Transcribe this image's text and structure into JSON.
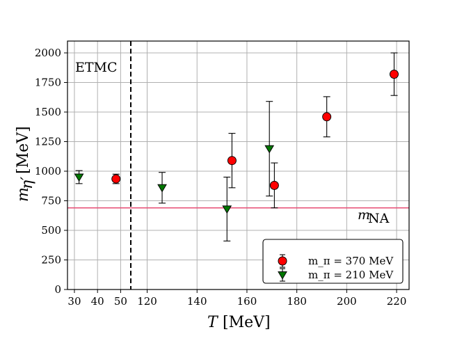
{
  "chart_data": {
    "type": "scatter",
    "title": "",
    "xlabel": "T [MeV]",
    "ylabel": "m_η′ [MeV]",
    "ylim": [
      0,
      2100
    ],
    "yticks": [
      0,
      250,
      500,
      750,
      1000,
      1250,
      1500,
      1750,
      2000
    ],
    "x_axis": "broken: first segment 30–50 MeV, second segment 120–220 MeV",
    "x_segment_1": {
      "range": [
        27,
        55
      ],
      "ticks": [
        30,
        40,
        50
      ]
    },
    "x_segment_2": {
      "range": [
        114,
        225
      ],
      "ticks": [
        120,
        140,
        160,
        180,
        200,
        220
      ]
    },
    "xtick_labels": [
      "30",
      "40",
      "50",
      "120",
      "140",
      "160",
      "180",
      "200",
      "220"
    ],
    "grid": true,
    "legend_position": "bottom-right",
    "annotations": {
      "top_left": "ETMC",
      "line_label": "m_NA"
    },
    "reference_line": {
      "name": "m_NA",
      "y": 690,
      "color": "#e8537a"
    },
    "divider": {
      "style": "dashed",
      "color": "#000000",
      "at": "boundary between segments"
    },
    "series": [
      {
        "name": "m_π = 370 MeV",
        "marker": "circle",
        "color": "#ff0000",
        "points": [
          {
            "x": 48,
            "y": 935,
            "err": 40
          },
          {
            "x": 154,
            "y": 1090,
            "err_low": 230,
            "err_high": 230
          },
          {
            "x": 171,
            "y": 880,
            "err_low": 190,
            "err_high": 190
          },
          {
            "x": 192,
            "y": 1460,
            "err_low": 170,
            "err_high": 170
          },
          {
            "x": 219,
            "y": 1820,
            "err_low": 180,
            "err_high": 180
          }
        ]
      },
      {
        "name": "m_π = 210 MeV",
        "marker": "triangle-down",
        "color": "#007700",
        "points": [
          {
            "x": 32,
            "y": 950,
            "err_low": 55,
            "err_high": 55
          },
          {
            "x": 126,
            "y": 860,
            "err_low": 130,
            "err_high": 130
          },
          {
            "x": 152,
            "y": 680,
            "err_low": 270,
            "err_high": 270
          },
          {
            "x": 169,
            "y": 1190,
            "err_low": 400,
            "err_high": 400
          }
        ]
      }
    ]
  }
}
